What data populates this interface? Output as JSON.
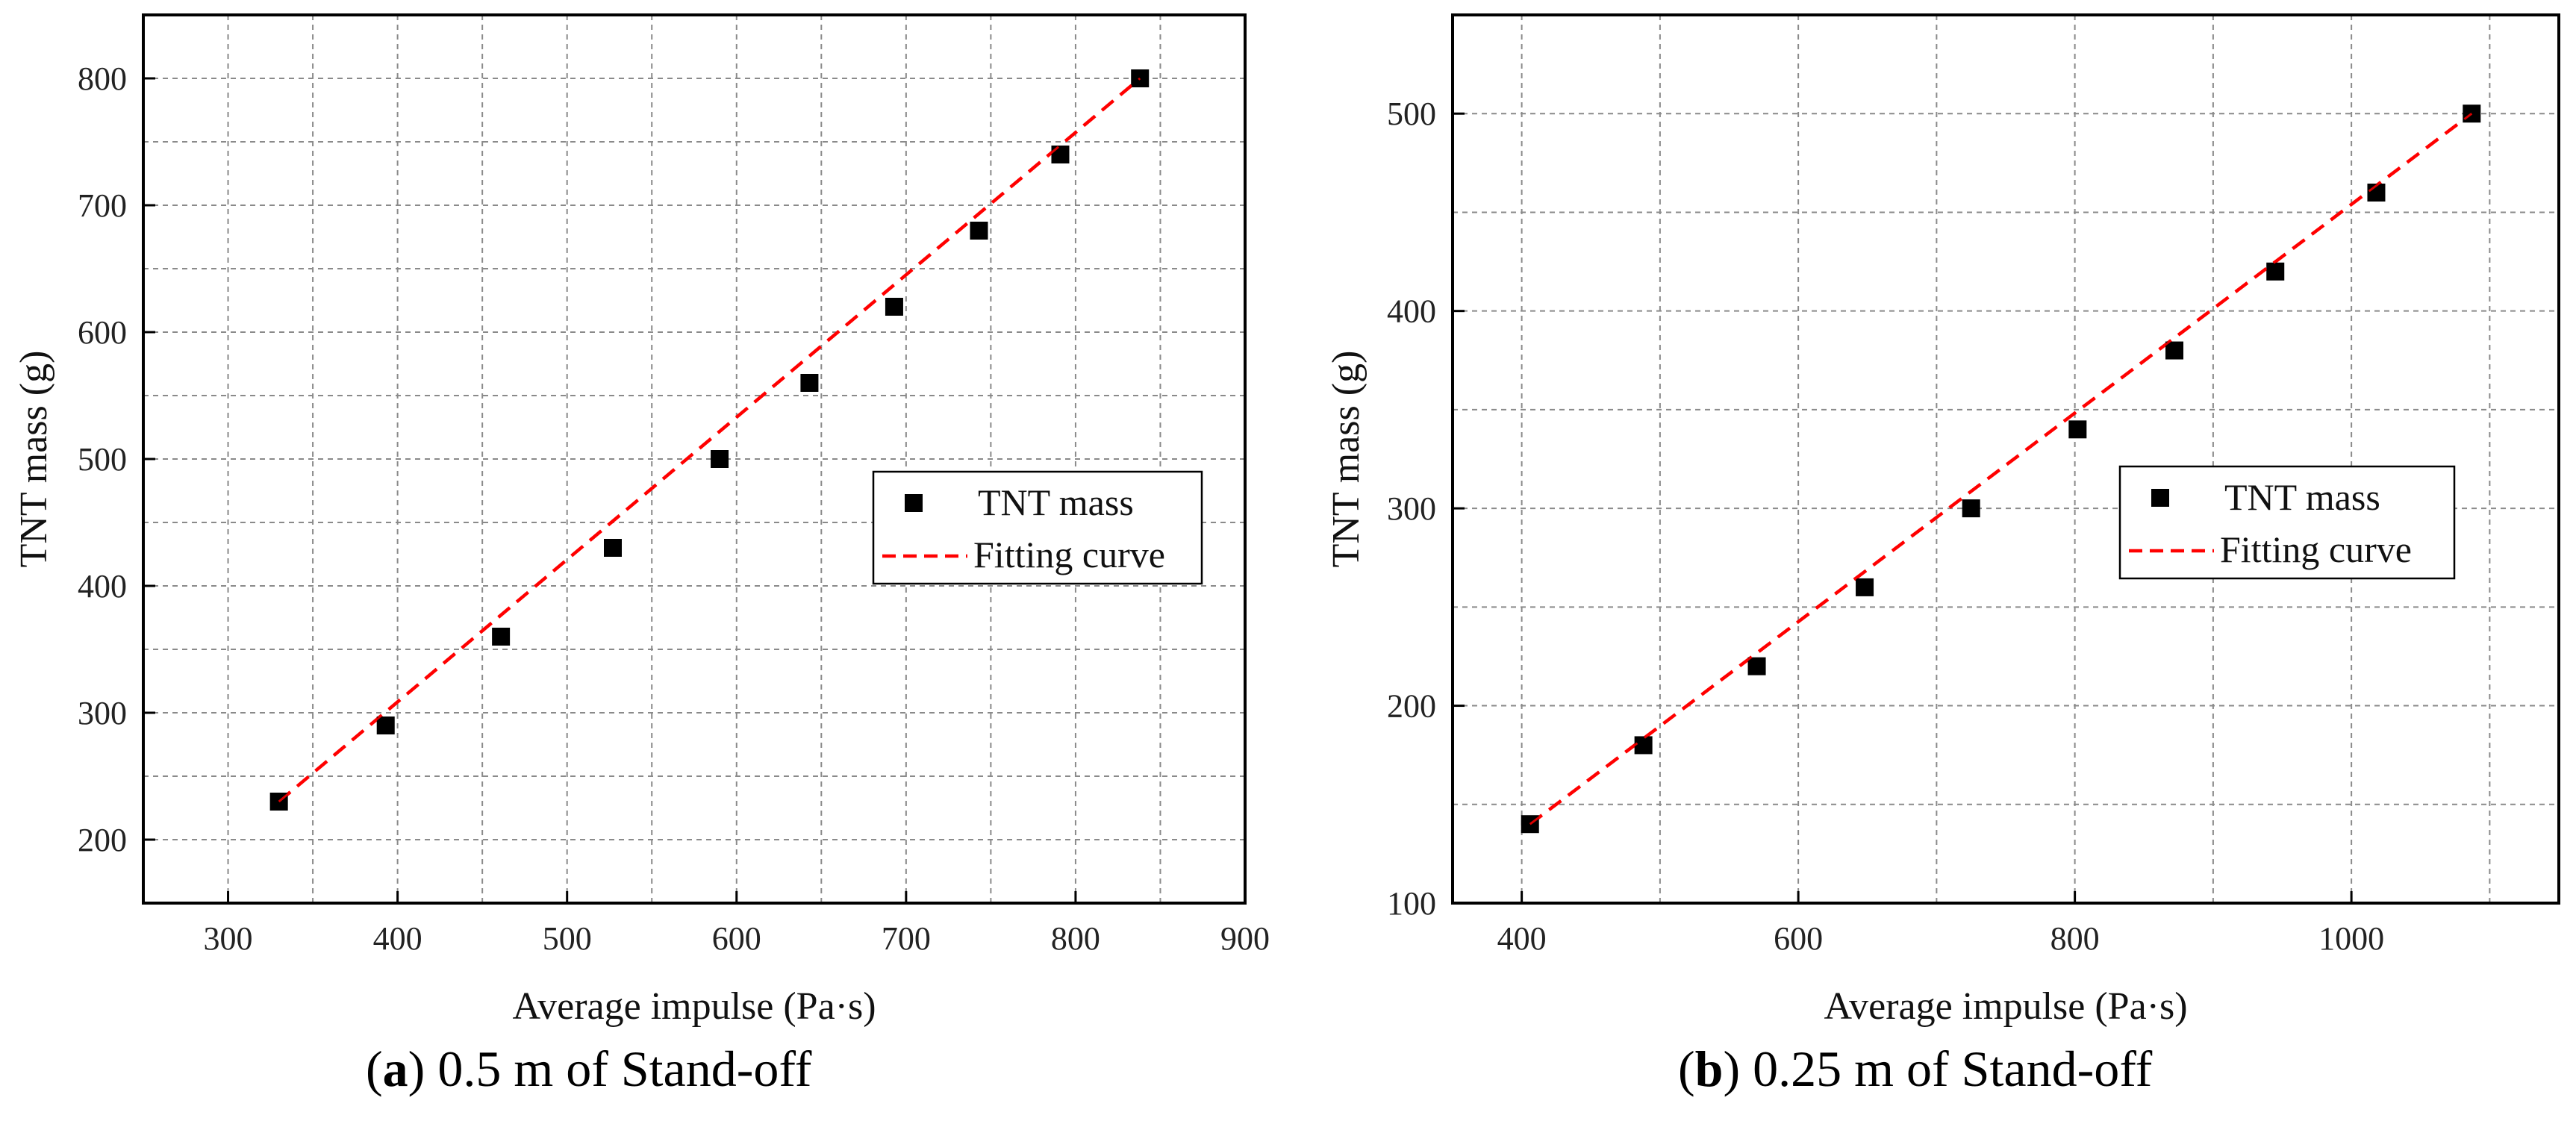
{
  "chart_data": [
    {
      "type": "scatter",
      "panel_label": "a",
      "caption": "0.5 m of Stand-off",
      "xlabel": "Average impulse (Pa·s)",
      "ylabel": "TNT mass (g)",
      "xlim": [
        250,
        900
      ],
      "ylim": [
        150,
        850
      ],
      "xticks": [
        300,
        400,
        500,
        600,
        700,
        800,
        900
      ],
      "yticks": [
        200,
        300,
        400,
        500,
        600,
        700,
        800
      ],
      "grid": true,
      "legend_position": "center-right",
      "series": [
        {
          "name": "TNT mass",
          "kind": "points",
          "marker": "square",
          "color": "#000000",
          "x": [
            330,
            393,
            461,
            527,
            590,
            643,
            693,
            743,
            791,
            838
          ],
          "y": [
            230,
            290,
            360,
            430,
            500,
            560,
            620,
            680,
            740,
            800
          ]
        },
        {
          "name": "Fitting curve",
          "kind": "dashed-line",
          "color": "#ff0000",
          "x": [
            330,
            838
          ],
          "y": [
            230,
            800
          ]
        }
      ]
    },
    {
      "type": "scatter",
      "panel_label": "b",
      "caption": "0.25 m of Stand-off",
      "xlabel": "Average impulse (Pa·s)",
      "ylabel": "TNT mass (g)",
      "xlim": [
        350,
        1150
      ],
      "ylim": [
        100,
        550
      ],
      "xticks": [
        400,
        600,
        800,
        1000
      ],
      "yticks": [
        100,
        200,
        300,
        400,
        500
      ],
      "grid": true,
      "legend_position": "center-right",
      "series": [
        {
          "name": "TNT mass",
          "kind": "points",
          "marker": "square",
          "color": "#000000",
          "x": [
            406,
            488,
            570,
            648,
            725,
            802,
            872,
            945,
            1018,
            1087
          ],
          "y": [
            140,
            180,
            220,
            260,
            300,
            340,
            380,
            420,
            460,
            500
          ]
        },
        {
          "name": "Fitting curve",
          "kind": "dashed-line",
          "color": "#ff0000",
          "x": [
            406,
            1087
          ],
          "y": [
            140,
            500
          ]
        }
      ]
    }
  ]
}
